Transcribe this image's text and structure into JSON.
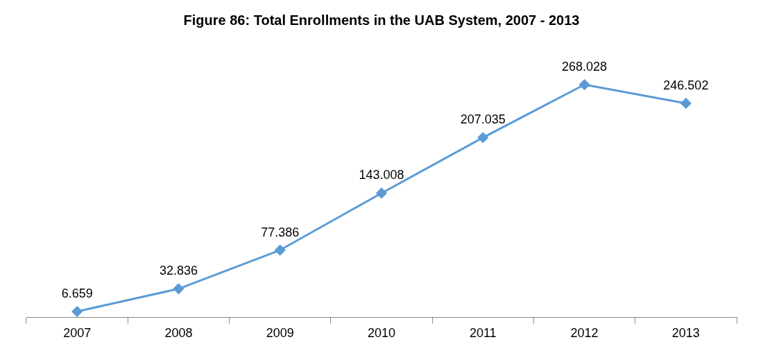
{
  "chart_data": {
    "type": "line",
    "title": "Figure 86: Total Enrollments in the UAB System, 2007 - 2013",
    "categories": [
      "2007",
      "2008",
      "2009",
      "2010",
      "2011",
      "2012",
      "2013"
    ],
    "series": [
      {
        "color": "#5b9bd5",
        "values": [
          6.659,
          32.836,
          77.386,
          143.008,
          207.035,
          268.028,
          246.502
        ]
      }
    ],
    "tick_labels": "x",
    "data_labels": true,
    "marker": "diamond",
    "line_style": "solid",
    "grid": false,
    "legend": false
  }
}
